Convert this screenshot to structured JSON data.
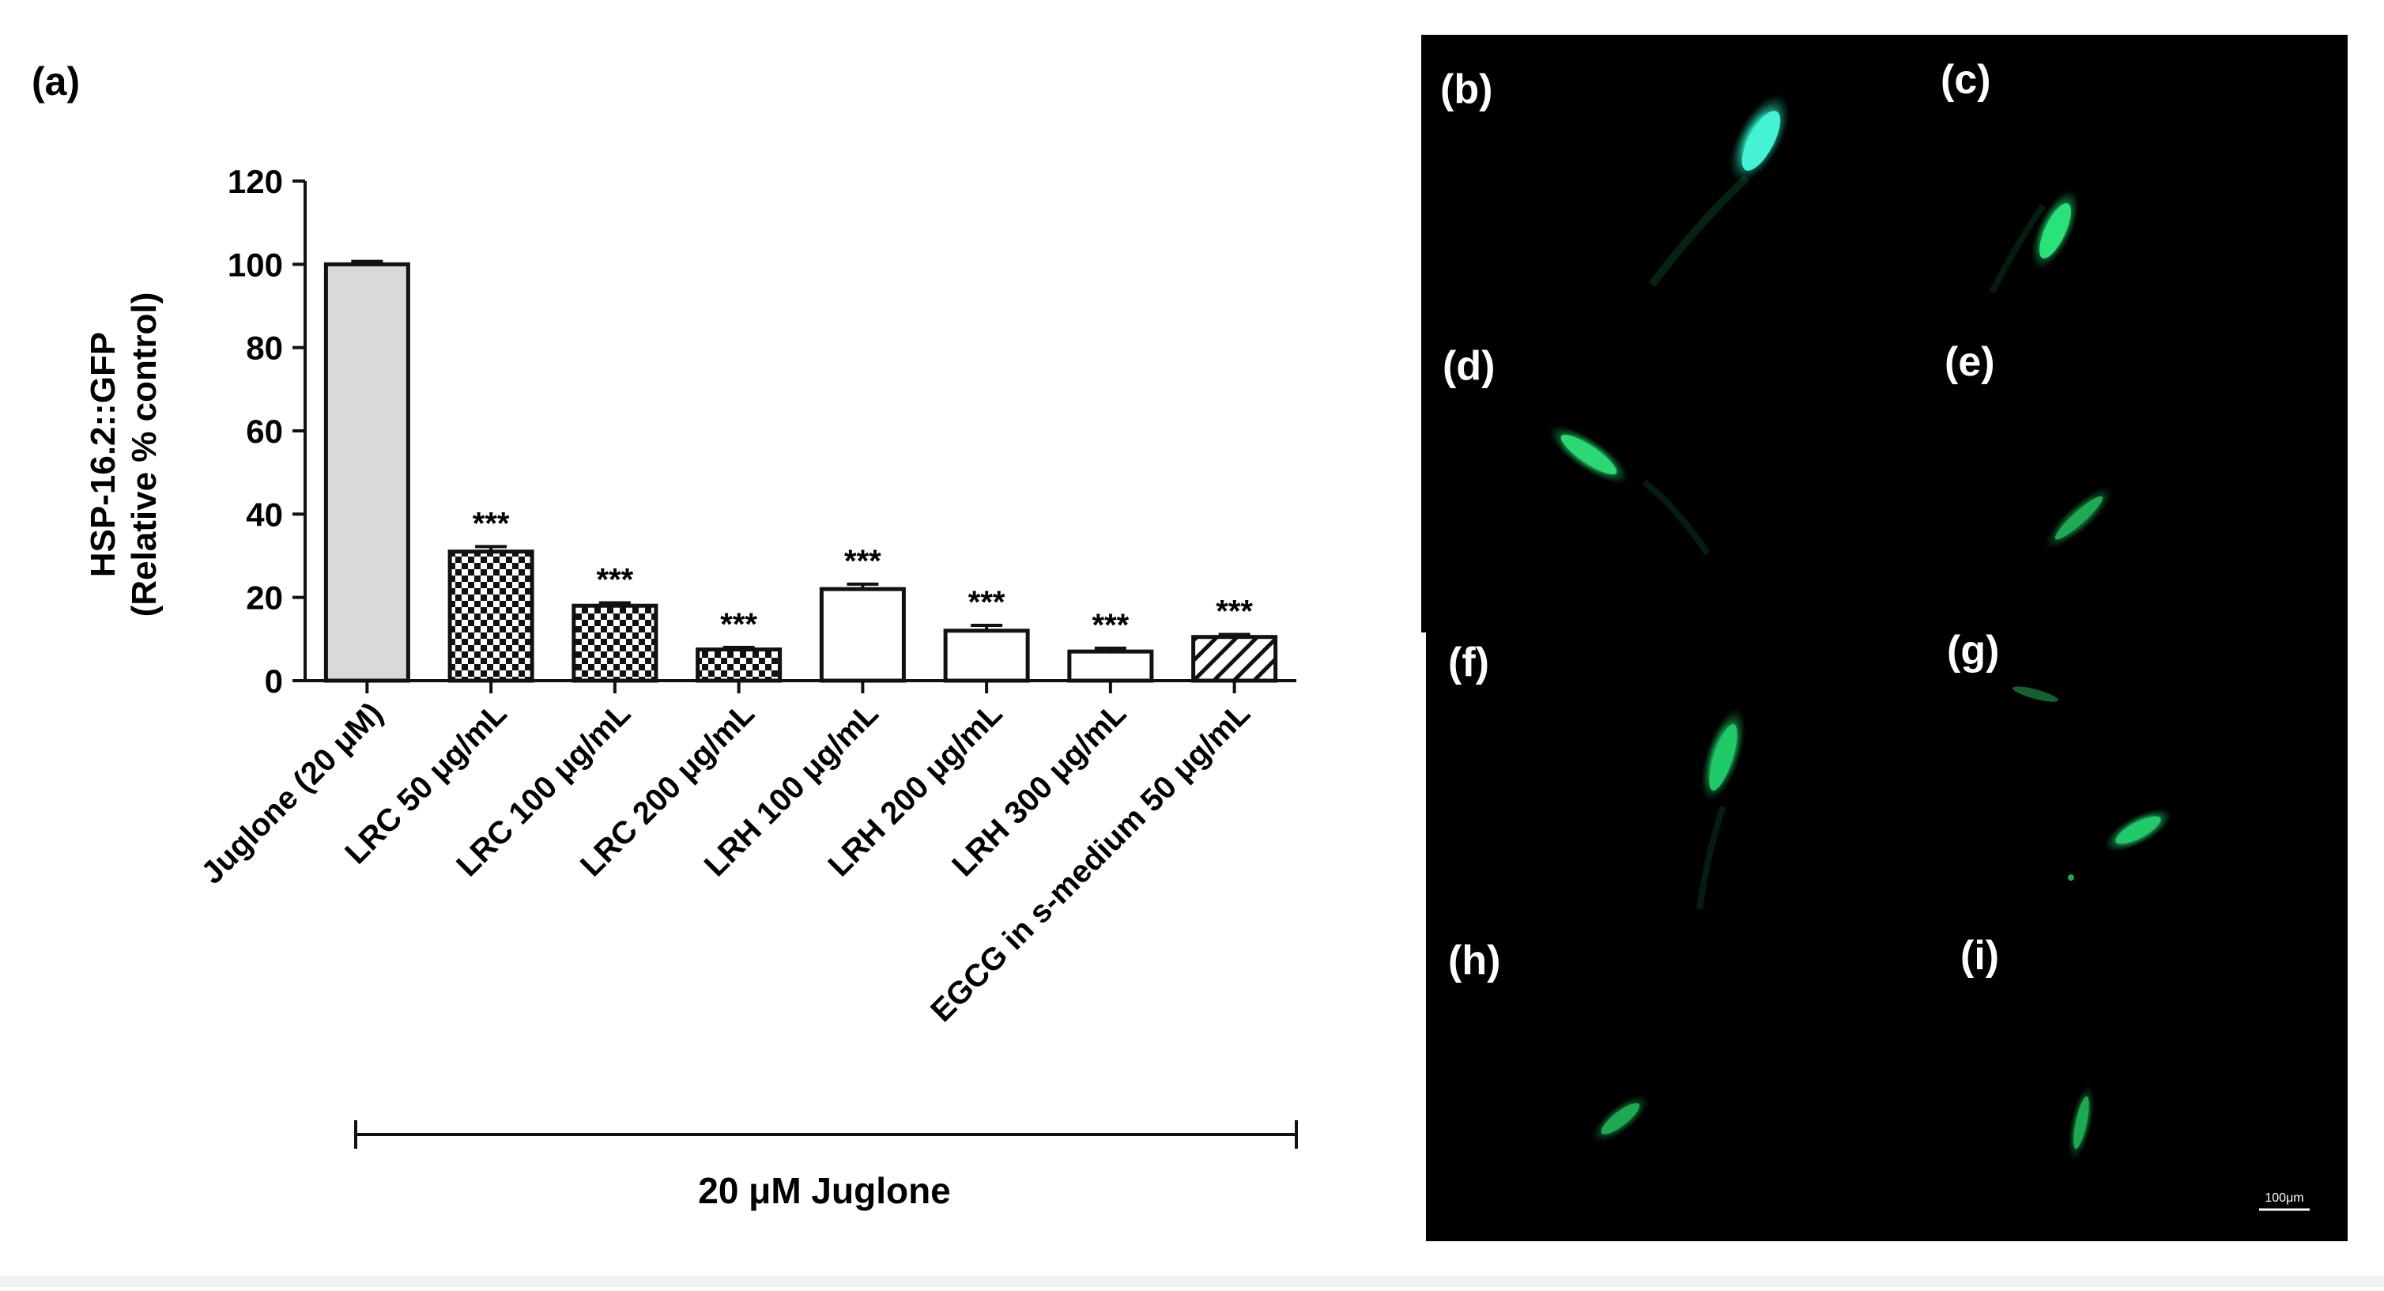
{
  "figure": {
    "panel_a_label": "(a)",
    "panel_labels": [
      "(b)",
      "(c)",
      "(d)",
      "(e)",
      "(f)",
      "(g)",
      "(h)",
      "(i)"
    ],
    "scale_bar_label": "100μm",
    "bracket_label": "20 μM Juglone"
  },
  "chart_data": {
    "type": "bar",
    "ylabel": "HSP-16.2::GFP",
    "ylabel_line2": "(Relative % control)",
    "xlabel": "",
    "ylim": [
      0,
      120
    ],
    "yticks": [
      0,
      20,
      40,
      60,
      80,
      100,
      120
    ],
    "categories": [
      "Juglone (20 μM)",
      "LRC 50 μg/mL",
      "LRC 100 μg/mL",
      "LRC 200 μg/mL",
      "LRH 100 μg/mL",
      "LRH 200 μg/mL",
      "LRH 300 μg/mL",
      "EGCG in s-medium 50 μg/mL"
    ],
    "values": [
      100,
      31,
      18,
      7.5,
      22,
      12,
      7,
      10.5
    ],
    "errors": [
      0.7,
      1.2,
      0.7,
      0.5,
      1.2,
      1.3,
      0.8,
      0.6
    ],
    "significance": [
      "",
      "***",
      "***",
      "***",
      "***",
      "***",
      "***",
      "***"
    ],
    "fills": [
      "gray",
      "checker",
      "checker",
      "checker",
      "white",
      "white",
      "white",
      "hatch"
    ],
    "grid": false,
    "legend": "none"
  },
  "colors": {
    "bar_gray": "#d9d9d9",
    "micrograph_bg": "#000000",
    "gfp_green": "#23d46e",
    "gfp_cyan": "#36f2c8",
    "axis": "#111111"
  }
}
